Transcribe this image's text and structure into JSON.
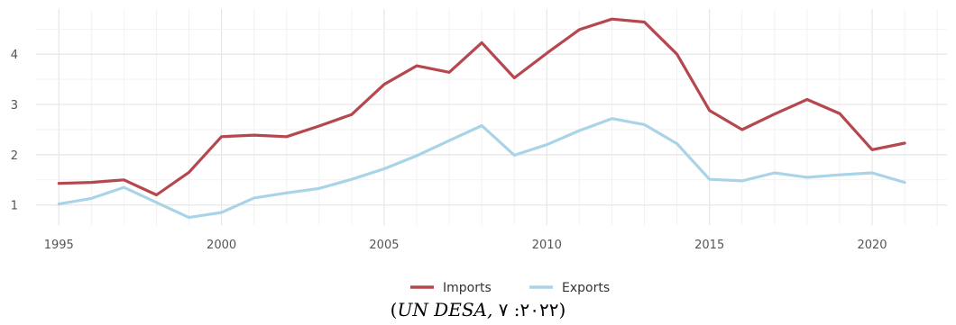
{
  "chart_data": {
    "type": "line",
    "x": [
      1995,
      1996,
      1997,
      1998,
      1999,
      2000,
      2001,
      2002,
      2003,
      2004,
      2005,
      2006,
      2007,
      2008,
      2009,
      2010,
      2011,
      2012,
      2013,
      2014,
      2015,
      2016,
      2017,
      2018,
      2019,
      2020,
      2021
    ],
    "series": [
      {
        "name": "Imports",
        "color": "#b5474f",
        "values": [
          1.43,
          1.45,
          1.5,
          1.2,
          1.65,
          2.36,
          2.39,
          2.36,
          2.57,
          2.8,
          3.4,
          3.77,
          3.64,
          4.23,
          3.53,
          4.02,
          4.49,
          4.7,
          4.64,
          4.0,
          2.88,
          2.5,
          2.81,
          3.1,
          2.82,
          2.1,
          2.23
        ]
      },
      {
        "name": "Exports",
        "color": "#a9d4e8",
        "values": [
          1.02,
          1.13,
          1.35,
          1.05,
          0.75,
          0.85,
          1.14,
          1.24,
          1.33,
          1.51,
          1.72,
          1.98,
          2.28,
          2.58,
          1.99,
          2.2,
          2.48,
          2.72,
          2.6,
          2.22,
          1.51,
          1.48,
          1.64,
          1.55,
          1.6,
          1.64,
          1.45
        ]
      }
    ],
    "x_ticks": [
      1995,
      2000,
      2005,
      2010,
      2015,
      2020
    ],
    "y_ticks": [
      1,
      2,
      3,
      4
    ],
    "xlim": [
      1994.3,
      2022.3
    ],
    "ylim": [
      0.6,
      4.9
    ],
    "grid": true,
    "legend_position": "bottom"
  },
  "caption": {
    "open": "(",
    "italic": "UN DESA,",
    "rest": " ٢٠٢٢: ٧",
    "close": ")"
  }
}
